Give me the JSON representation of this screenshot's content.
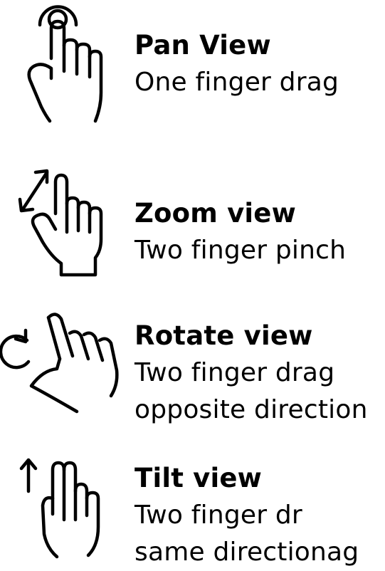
{
  "gestures": [
    {
      "icon": "tap-hand-icon",
      "title": "Pan View",
      "description": [
        "One finger drag"
      ]
    },
    {
      "icon": "pinch-hand-icon",
      "title": "Zoom view",
      "description": [
        "Two finger pinch"
      ]
    },
    {
      "icon": "rotate-hand-icon",
      "title": "Rotate view",
      "description": [
        "Two finger drag",
        "opposite direction"
      ]
    },
    {
      "icon": "two-finger-up-icon",
      "title": "Tilt view",
      "description": [
        "Two finger dr",
        "same directionag"
      ]
    }
  ]
}
